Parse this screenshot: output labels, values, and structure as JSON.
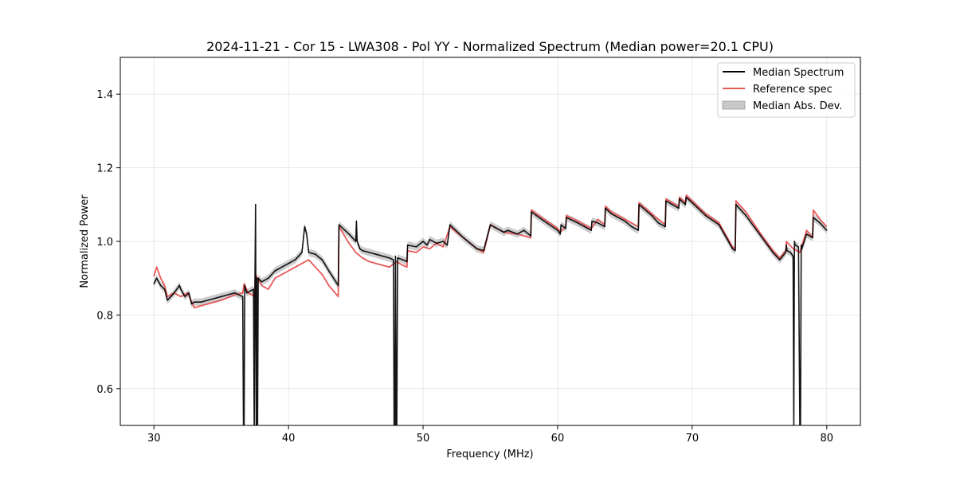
{
  "chart_data": {
    "type": "line",
    "title": "2024-11-21 - Cor 15 - LWA308 - Pol YY - Normalized Spectrum (Median power=20.1 CPU)",
    "xlabel": "Frequency (MHz)",
    "ylabel": "Normalized Power",
    "xlim": [
      27.5,
      82.5
    ],
    "ylim": [
      0.5,
      1.5
    ],
    "xticks": [
      30,
      40,
      50,
      60,
      70,
      80
    ],
    "xtick_labels": [
      "30",
      "40",
      "50",
      "60",
      "70",
      "80"
    ],
    "yticks": [
      0.6,
      0.8,
      1.0,
      1.2,
      1.4
    ],
    "ytick_labels": [
      "0.6",
      "0.8",
      "1.0",
      "1.2",
      "1.4"
    ],
    "grid": true,
    "legend_position": "top-right",
    "series": [
      {
        "name": "Median Spectrum",
        "color": "#000000",
        "style": "line",
        "x": [
          30.0,
          30.2,
          30.5,
          30.8,
          31.0,
          31.5,
          31.9,
          32.0,
          32.3,
          32.6,
          32.8,
          33.0,
          33.5,
          34.0,
          34.5,
          35.0,
          35.5,
          36.0,
          36.6,
          36.65,
          36.7,
          36.75,
          36.9,
          37.4,
          37.45,
          37.5,
          37.55,
          37.6,
          37.62,
          37.64,
          37.7,
          37.75,
          38.0,
          38.5,
          39.0,
          39.5,
          40.0,
          40.5,
          41.0,
          41.2,
          41.35,
          41.5,
          42.0,
          42.5,
          43.0,
          43.7,
          43.75,
          44.5,
          45.0,
          45.05,
          45.1,
          45.3,
          45.5,
          46.0,
          46.5,
          47.0,
          47.5,
          47.8,
          47.85,
          47.9,
          47.95,
          48.0,
          48.05,
          48.1,
          48.5,
          48.8,
          48.85,
          49.5,
          50.0,
          50.3,
          50.5,
          51.0,
          51.5,
          51.8,
          52.0,
          53.0,
          54.0,
          54.5,
          55.0,
          56.0,
          56.3,
          57.0,
          57.5,
          58.0,
          58.05,
          59.0,
          60.0,
          60.2,
          60.25,
          60.6,
          60.65,
          61.5,
          62.0,
          62.5,
          62.55,
          63.0,
          63.5,
          63.55,
          64.0,
          65.0,
          65.5,
          66.0,
          66.05,
          67.0,
          67.5,
          68.0,
          68.05,
          69.0,
          69.05,
          69.5,
          69.55,
          70.0,
          71.0,
          72.0,
          73.0,
          73.2,
          73.25,
          74.0,
          75.0,
          76.0,
          76.5,
          76.95,
          77.0,
          77.05,
          77.3,
          77.5,
          77.55,
          77.6,
          77.65,
          77.9,
          78.0,
          78.05,
          78.1,
          78.15,
          78.5,
          78.95,
          79.0,
          79.5,
          80.0
        ],
        "values": [
          0.885,
          0.9,
          0.88,
          0.87,
          0.84,
          0.86,
          0.88,
          0.87,
          0.85,
          0.86,
          0.83,
          0.835,
          0.835,
          0.84,
          0.845,
          0.85,
          0.855,
          0.86,
          0.85,
          0.0,
          0.0,
          0.88,
          0.86,
          0.87,
          0.0,
          0.86,
          1.1,
          0.0,
          0.0,
          0.9,
          0.0,
          0.9,
          0.89,
          0.9,
          0.92,
          0.93,
          0.94,
          0.95,
          0.97,
          1.04,
          1.02,
          0.97,
          0.965,
          0.95,
          0.92,
          0.88,
          1.045,
          1.02,
          1.0,
          1.055,
          1.0,
          0.98,
          0.975,
          0.97,
          0.965,
          0.96,
          0.955,
          0.95,
          0.0,
          0.0,
          0.96,
          0.0,
          0.0,
          0.955,
          0.95,
          0.945,
          0.99,
          0.985,
          1.0,
          0.99,
          1.005,
          0.995,
          1.0,
          0.99,
          1.045,
          1.01,
          0.98,
          0.975,
          1.045,
          1.025,
          1.03,
          1.02,
          1.03,
          1.015,
          1.08,
          1.055,
          1.03,
          1.02,
          1.045,
          1.035,
          1.065,
          1.05,
          1.04,
          1.03,
          1.055,
          1.05,
          1.04,
          1.09,
          1.075,
          1.055,
          1.04,
          1.03,
          1.1,
          1.07,
          1.05,
          1.04,
          1.11,
          1.09,
          1.115,
          1.1,
          1.12,
          1.105,
          1.07,
          1.045,
          0.98,
          0.975,
          1.1,
          1.07,
          1.02,
          0.97,
          0.95,
          0.97,
          0.99,
          0.975,
          0.97,
          0.96,
          0.0,
          1.0,
          0.99,
          0.985,
          0.0,
          0.0,
          0.99,
          0.98,
          1.02,
          1.01,
          1.065,
          1.05,
          1.03
        ]
      },
      {
        "name": "Reference spec",
        "color": "#e8595a",
        "style": "line",
        "x": [
          30.0,
          30.2,
          30.5,
          30.8,
          31.0,
          31.5,
          32.0,
          32.5,
          33.0,
          34.0,
          35.0,
          36.0,
          36.6,
          36.7,
          37.0,
          37.5,
          37.55,
          38.0,
          38.5,
          39.0,
          39.5,
          40.0,
          40.5,
          41.0,
          41.5,
          42.0,
          42.5,
          43.0,
          43.7,
          43.75,
          44.5,
          45.0,
          45.5,
          46.0,
          46.5,
          47.0,
          47.5,
          48.0,
          48.5,
          48.8,
          48.85,
          49.5,
          50.0,
          50.5,
          51.0,
          51.5,
          52.0,
          53.0,
          54.0,
          54.5,
          55.0,
          56.0,
          57.0,
          57.5,
          58.0,
          58.05,
          59.0,
          60.0,
          60.2,
          60.6,
          60.65,
          61.5,
          62.0,
          62.5,
          63.0,
          63.5,
          63.55,
          64.0,
          65.0,
          66.0,
          66.05,
          67.0,
          68.0,
          68.05,
          69.0,
          69.05,
          69.5,
          69.55,
          70.0,
          71.0,
          72.0,
          73.0,
          73.2,
          73.25,
          74.0,
          75.0,
          76.0,
          76.5,
          76.95,
          77.0,
          77.5,
          78.0,
          78.5,
          78.95,
          79.0,
          79.5,
          80.0
        ],
        "values": [
          0.905,
          0.93,
          0.9,
          0.88,
          0.85,
          0.86,
          0.85,
          0.86,
          0.82,
          0.83,
          0.84,
          0.855,
          0.86,
          0.885,
          0.86,
          0.85,
          0.91,
          0.88,
          0.87,
          0.9,
          0.91,
          0.92,
          0.93,
          0.94,
          0.95,
          0.93,
          0.91,
          0.88,
          0.85,
          1.04,
          0.995,
          0.97,
          0.955,
          0.945,
          0.94,
          0.935,
          0.93,
          0.945,
          0.935,
          0.93,
          0.975,
          0.97,
          0.985,
          0.98,
          0.995,
          0.985,
          1.04,
          1.01,
          0.98,
          0.97,
          1.045,
          1.025,
          1.02,
          1.015,
          1.01,
          1.085,
          1.06,
          1.035,
          1.025,
          1.04,
          1.07,
          1.055,
          1.045,
          1.035,
          1.06,
          1.045,
          1.095,
          1.08,
          1.06,
          1.04,
          1.105,
          1.075,
          1.045,
          1.115,
          1.095,
          1.12,
          1.105,
          1.125,
          1.11,
          1.075,
          1.05,
          0.985,
          0.98,
          1.11,
          1.08,
          1.025,
          0.975,
          0.955,
          0.975,
          1.0,
          0.98,
          0.97,
          1.03,
          1.01,
          1.085,
          1.06,
          1.04
        ]
      },
      {
        "name": "Median Abs. Dev.",
        "color": "#c8c8c8",
        "style": "band",
        "half_width": 0.01
      }
    ]
  }
}
